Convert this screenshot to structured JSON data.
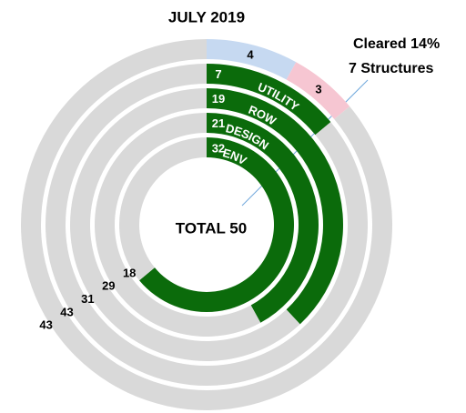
{
  "chart_data": {
    "type": "radial_bar",
    "title": "JULY 2019",
    "center_label": "TOTAL 50",
    "annotation": [
      "Cleared 14%",
      "7 Structures"
    ],
    "rings": [
      {
        "segments": [
          {
            "value": 4,
            "color": "#c6d9f1"
          },
          {
            "value": 3,
            "color": "#f6c6d2"
          },
          {
            "value": 43,
            "color": "#d9d9d9"
          }
        ]
      },
      {
        "name": "UTILITY",
        "segments": [
          {
            "value": 7,
            "color": "#0b6b0b"
          },
          {
            "value": 43,
            "color": "#d9d9d9"
          }
        ]
      },
      {
        "name": "ROW",
        "segments": [
          {
            "value": 19,
            "color": "#0b6b0b"
          },
          {
            "value": 31,
            "color": "#d9d9d9"
          }
        ]
      },
      {
        "name": "DESIGN",
        "segments": [
          {
            "value": 21,
            "color": "#0b6b0b"
          },
          {
            "value": 29,
            "color": "#d9d9d9"
          }
        ]
      },
      {
        "name": "ENV",
        "segments": [
          {
            "value": 32,
            "color": "#0b6b0b"
          },
          {
            "value": 18,
            "color": "#d9d9d9"
          }
        ]
      }
    ]
  }
}
